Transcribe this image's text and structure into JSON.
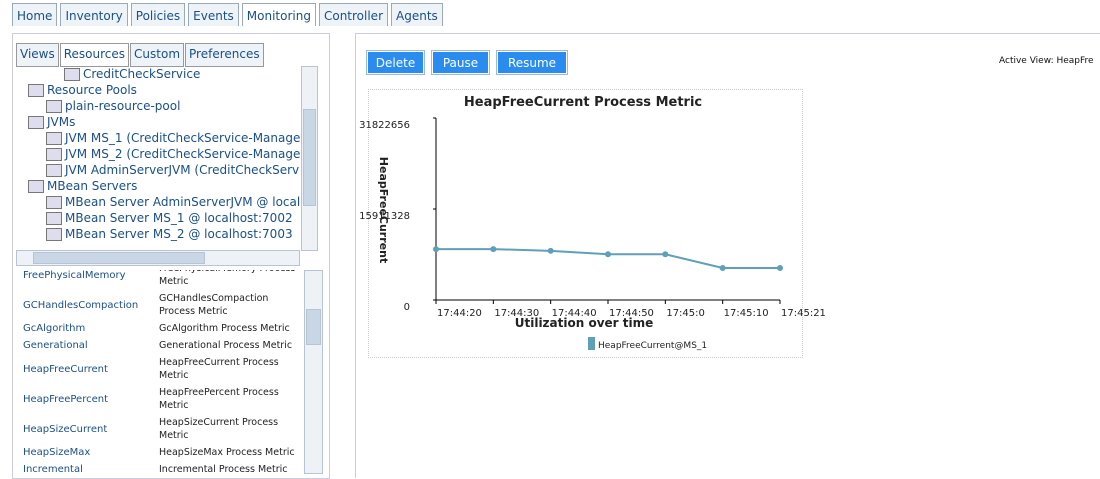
{
  "tabs": [
    "Home",
    "Inventory",
    "Policies",
    "Events",
    "Monitoring",
    "Controller",
    "Agents"
  ],
  "left_tabs": [
    "Views",
    "Resources",
    "Custom",
    "Preferences"
  ],
  "tree": [
    {
      "label": "CreditCheckService"
    },
    {
      "label": "Resource Pools",
      "children": [
        {
          "label": "plain-resource-pool"
        }
      ]
    },
    {
      "label": "JVMs",
      "children": [
        {
          "label": "JVM MS_1 (CreditCheckService-Manage"
        },
        {
          "label": "JVM MS_2 (CreditCheckService-Manage"
        },
        {
          "label": "JVM AdminServerJVM (CreditCheckServi"
        }
      ]
    },
    {
      "label": "MBean Servers",
      "children": [
        {
          "label": "MBean Server AdminServerJVM @ localh"
        },
        {
          "label": "MBean Server MS_1 @ localhost:7002"
        },
        {
          "label": "MBean Server MS_2 @ localhost:7003"
        }
      ]
    }
  ],
  "metrics": [
    [
      "FreePhysicalMemory",
      "FreePhysicalMemory Process Metric"
    ],
    [
      "GCHandlesCompaction",
      "GCHandlesCompaction Process Metric"
    ],
    [
      "GcAlgorithm",
      "GcAlgorithm Process Metric"
    ],
    [
      "Generational",
      "Generational Process Metric"
    ],
    [
      "HeapFreeCurrent",
      "HeapFreeCurrent Process Metric"
    ],
    [
      "HeapFreePercent",
      "HeapFreePercent Process Metric"
    ],
    [
      "HeapSizeCurrent",
      "HeapSizeCurrent Process Metric"
    ],
    [
      "HeapSizeMax",
      "HeapSizeMax Process Metric"
    ],
    [
      "Incremental",
      "Incremental Process Metric"
    ]
  ],
  "buttons": [
    "Delete",
    "Pause",
    "Resume"
  ],
  "active_view": "Active View: HeapFre",
  "chart_data": {
    "type": "line",
    "title": "HeapFreeCurrent Process Metric",
    "x_label": "Utilization over time",
    "y_label": "HeapFreeCurrent",
    "categories": [
      "17:44:20",
      "17:44:30",
      "17:44:40",
      "17:44:50",
      "17:45:0",
      "17:45:10",
      "17:45:21"
    ],
    "series": [
      {
        "name": "HeapFreeCurrent@MS_1",
        "color": "#5fa0b8",
        "values": [
          8900000,
          8900000,
          8600000,
          8000000,
          8000000,
          5600000,
          5600000
        ]
      }
    ],
    "ylim": [
      0,
      31822656
    ],
    "yticks": [
      0,
      15911328,
      31822656
    ]
  }
}
